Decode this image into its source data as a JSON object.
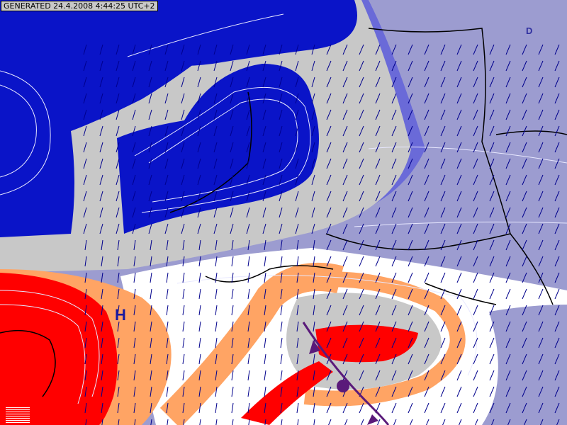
{
  "header": {
    "generated_stamp": "GENERATED 24.4.2008 4:44:25 UTC+2"
  },
  "pressure_labels": {
    "high": "H",
    "low": "D"
  },
  "colors": {
    "deep_low": "#0a14c8",
    "low": "#9c9cd0",
    "mid_low": "#6a6ad8",
    "neutral": "#ffffff",
    "contour_band": "#c8c8c8",
    "warm": "#ffa464",
    "high": "#ff0000",
    "wind_arrow": "#00008c",
    "front": "#5a1a7a"
  },
  "icons": {
    "wind": "wind-arrow-icon",
    "front": "cold-front-icon",
    "legend": "legend-swatch-icon"
  }
}
